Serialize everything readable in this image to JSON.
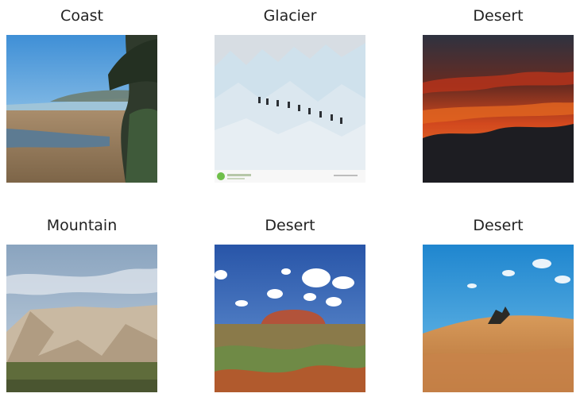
{
  "images": [
    {
      "label": "Coast"
    },
    {
      "label": "Glacier"
    },
    {
      "label": "Desert"
    },
    {
      "label": "Mountain"
    },
    {
      "label": "Desert"
    },
    {
      "label": "Desert"
    }
  ]
}
